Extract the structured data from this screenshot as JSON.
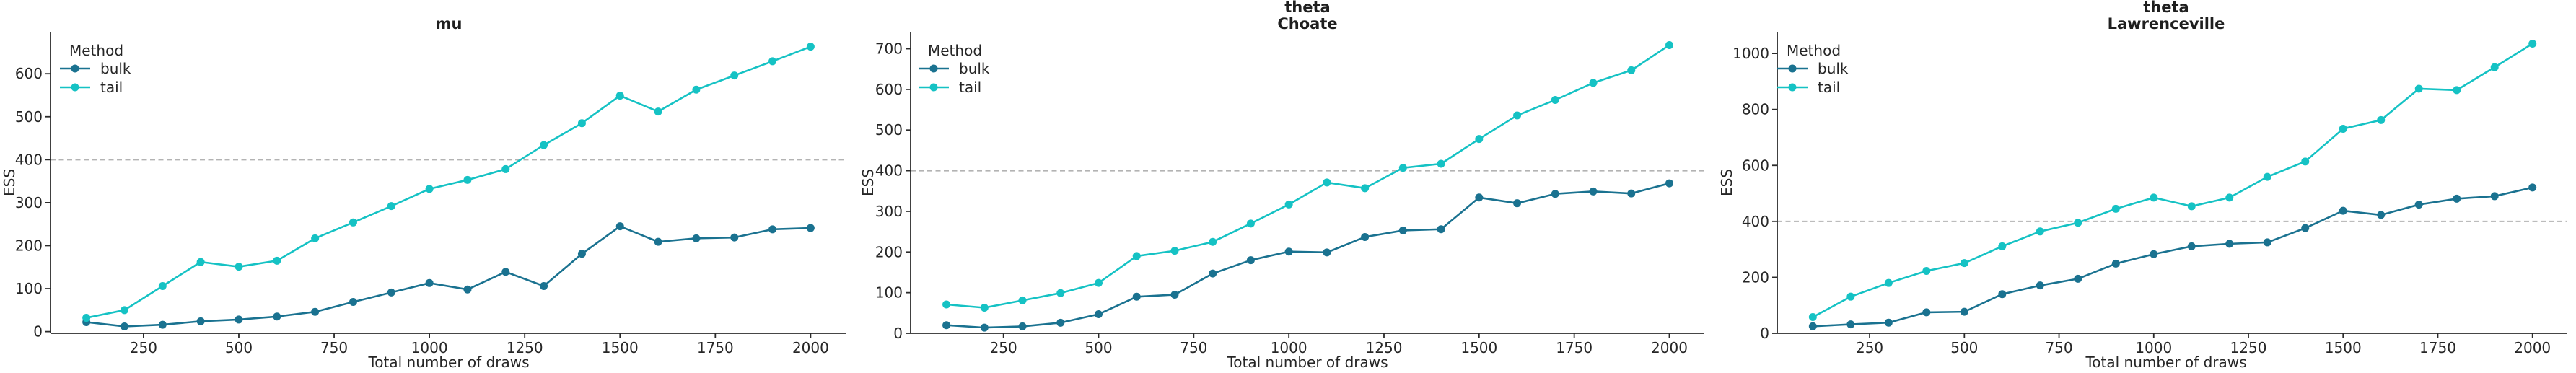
{
  "figure": {
    "background": "#ffffff",
    "text_color": "#262626",
    "axis_color": "#2b2b2b",
    "legend_title": "Method",
    "methods": [
      {
        "name": "bulk",
        "color": "#1a7290"
      },
      {
        "name": "tail",
        "color": "#15c2c4"
      }
    ],
    "reference_line": {
      "value": 400,
      "color": "#b3b3b3",
      "style": "dashed"
    },
    "xlabel": "Total number of draws",
    "ylabel": "ESS"
  },
  "chart_data": [
    {
      "type": "line",
      "title_lines": [
        "mu"
      ],
      "xlabel": "Total number of draws",
      "ylabel": "ESS",
      "x": [
        100,
        200,
        300,
        400,
        500,
        600,
        700,
        800,
        900,
        1000,
        1100,
        1200,
        1300,
        1400,
        1500,
        1600,
        1700,
        1800,
        1900,
        2000
      ],
      "series": [
        {
          "name": "bulk",
          "color": "#1a7290",
          "values": [
            22,
            12,
            16,
            24,
            28,
            35,
            46,
            69,
            91,
            113,
            98,
            139,
            106,
            181,
            245,
            209,
            217,
            219,
            238,
            241
          ]
        },
        {
          "name": "tail",
          "color": "#15c2c4",
          "values": [
            32,
            50,
            106,
            162,
            151,
            165,
            217,
            254,
            292,
            332,
            353,
            378,
            434,
            485,
            549,
            512,
            563,
            596,
            629,
            663
          ]
        }
      ],
      "xticks": [
        250,
        500,
        750,
        1000,
        1250,
        1500,
        1750,
        2000
      ],
      "yticks": [
        0,
        100,
        200,
        300,
        400,
        500,
        600
      ],
      "xlim": [
        6,
        2092
      ],
      "ylim": [
        -4,
        696
      ],
      "reference_line_y": 400,
      "grid": false,
      "legend": {
        "title": "Method",
        "entries": [
          "bulk",
          "tail"
        ],
        "position": "upper left"
      }
    },
    {
      "type": "line",
      "title_lines": [
        "theta",
        "Choate"
      ],
      "xlabel": "Total number of draws",
      "ylabel": "ESS",
      "x": [
        100,
        200,
        300,
        400,
        500,
        600,
        700,
        800,
        900,
        1000,
        1100,
        1200,
        1300,
        1400,
        1500,
        1600,
        1700,
        1800,
        1900,
        2000
      ],
      "series": [
        {
          "name": "bulk",
          "color": "#1a7290",
          "values": [
            20,
            14,
            17,
            26,
            47,
            90,
            95,
            147,
            180,
            201,
            199,
            237,
            253,
            256,
            334,
            320,
            343,
            349,
            344,
            369
          ]
        },
        {
          "name": "tail",
          "color": "#15c2c4",
          "values": [
            71,
            63,
            81,
            99,
            124,
            190,
            203,
            225,
            270,
            317,
            371,
            357,
            407,
            417,
            478,
            536,
            574,
            616,
            647,
            709
          ]
        }
      ],
      "xticks": [
        250,
        500,
        750,
        1000,
        1250,
        1500,
        1750,
        2000
      ],
      "yticks": [
        0,
        100,
        200,
        300,
        400,
        500,
        600,
        700
      ],
      "xlim": [
        6,
        2092
      ],
      "ylim": [
        0,
        740
      ],
      "reference_line_y": 400,
      "grid": false,
      "legend": {
        "title": "Method",
        "entries": [
          "bulk",
          "tail"
        ],
        "position": "upper left"
      }
    },
    {
      "type": "line",
      "title_lines": [
        "theta",
        "Lawrenceville"
      ],
      "xlabel": "Total number of draws",
      "ylabel": "ESS",
      "x": [
        100,
        200,
        300,
        400,
        500,
        600,
        700,
        800,
        900,
        1000,
        1100,
        1200,
        1300,
        1400,
        1500,
        1600,
        1700,
        1800,
        1900,
        2000
      ],
      "series": [
        {
          "name": "bulk",
          "color": "#1a7290",
          "values": [
            25,
            32,
            38,
            75,
            77,
            140,
            171,
            195,
            249,
            283,
            311,
            320,
            325,
            376,
            438,
            423,
            460,
            481,
            490,
            521
          ]
        },
        {
          "name": "tail",
          "color": "#15c2c4",
          "values": [
            58,
            131,
            180,
            223,
            251,
            311,
            364,
            395,
            445,
            485,
            454,
            485,
            559,
            614,
            731,
            762,
            874,
            869,
            951,
            1035
          ]
        }
      ],
      "xticks": [
        250,
        500,
        750,
        1000,
        1250,
        1500,
        1750,
        2000
      ],
      "yticks": [
        0,
        200,
        400,
        600,
        800,
        1000
      ],
      "xlim": [
        6,
        2092
      ],
      "ylim": [
        0,
        1075
      ],
      "reference_line_y": 400,
      "grid": false,
      "legend": {
        "title": "Method",
        "entries": [
          "bulk",
          "tail"
        ],
        "position": "upper left"
      }
    }
  ]
}
